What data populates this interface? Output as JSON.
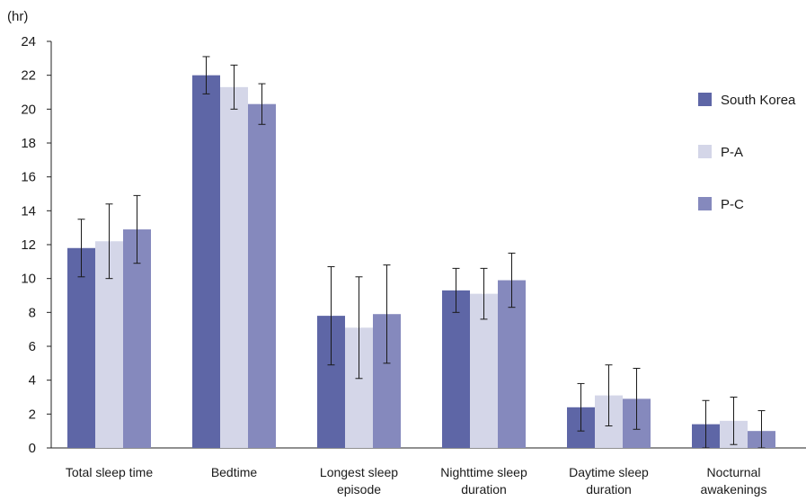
{
  "chart_data": {
    "type": "bar",
    "unit_label": "(hr)",
    "categories": [
      [
        "Total sleep time"
      ],
      [
        "Bedtime"
      ],
      [
        "Longest sleep",
        "episode"
      ],
      [
        "Nighttime sleep",
        "duration"
      ],
      [
        "Daytime sleep",
        "duration"
      ],
      [
        "Nocturnal",
        "awakenings"
      ]
    ],
    "ylim": [
      0,
      24
    ],
    "yticks": [
      0,
      2,
      4,
      6,
      8,
      10,
      12,
      14,
      16,
      18,
      20,
      22,
      24
    ],
    "grid": false,
    "legend_position": "right",
    "series": [
      {
        "name": "South Korea",
        "color": "#5e66a6",
        "values": [
          11.8,
          22.0,
          7.8,
          9.3,
          2.4,
          1.4
        ],
        "errors": [
          1.7,
          1.1,
          2.9,
          1.3,
          1.4,
          1.4
        ]
      },
      {
        "name": "P-A",
        "color": "#d4d6e8",
        "values": [
          12.2,
          21.3,
          7.1,
          9.1,
          3.1,
          1.6
        ],
        "errors": [
          2.2,
          1.3,
          3.0,
          1.5,
          1.8,
          1.4
        ]
      },
      {
        "name": "P-C",
        "color": "#8589bd",
        "values": [
          12.9,
          20.3,
          7.9,
          9.9,
          2.9,
          1.0
        ],
        "errors": [
          2.0,
          1.2,
          2.9,
          1.6,
          1.8,
          1.2
        ]
      }
    ]
  }
}
